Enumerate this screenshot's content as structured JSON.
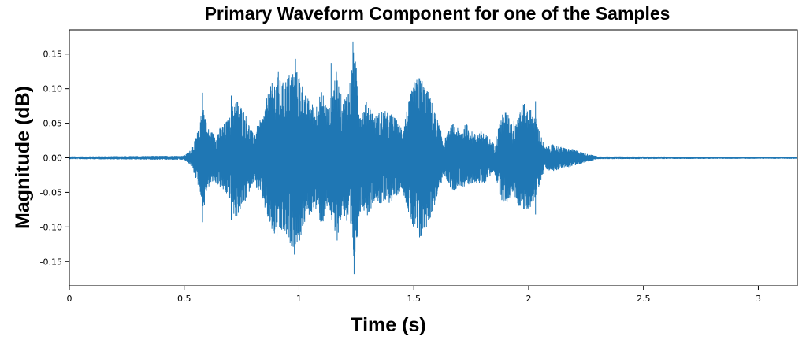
{
  "chart_data": {
    "type": "line",
    "title": "Primary Waveform Component for one of the Samples",
    "xlabel": "Time (s)",
    "ylabel": "Magnitude (dB)",
    "xlim": [
      0,
      3.17
    ],
    "ylim": [
      -0.185,
      0.185
    ],
    "xticks": [
      0,
      0.5,
      1,
      1.5,
      2,
      2.5,
      3
    ],
    "xtick_labels": [
      "0",
      "0.5",
      "1",
      "1.5",
      "2",
      "2.5",
      "3"
    ],
    "yticks": [
      0.15,
      0.1,
      0.05,
      0.0,
      -0.05,
      -0.1,
      -0.15
    ],
    "ytick_labels": [
      "0.15",
      "0.10",
      "0.05",
      "0.00",
      "-0.05",
      "-0.10",
      "-0.15"
    ],
    "grid": false,
    "series": [
      {
        "color": "#1f77b4",
        "envelope": {
          "t": [
            0,
            0.05,
            0.5,
            0.53,
            0.55,
            0.57,
            0.58,
            0.6,
            0.63,
            0.66,
            0.7,
            0.72,
            0.76,
            0.8,
            0.84,
            0.87,
            0.9,
            0.93,
            0.97,
            1.0,
            1.03,
            1.07,
            1.1,
            1.13,
            1.16,
            1.19,
            1.22,
            1.24,
            1.27,
            1.3,
            1.33,
            1.36,
            1.4,
            1.45,
            1.5,
            1.53,
            1.57,
            1.6,
            1.63,
            1.67,
            1.7,
            1.73,
            1.76,
            1.8,
            1.85,
            1.88,
            1.9,
            1.93,
            1.97,
            2.0,
            2.03,
            2.07,
            2.1,
            2.15,
            2.2,
            2.25,
            2.28,
            2.3,
            3.0,
            3.17
          ],
          "amp": [
            0.002,
            0.002,
            0.003,
            0.012,
            0.03,
            0.05,
            0.09,
            0.045,
            0.035,
            0.045,
            0.06,
            0.09,
            0.07,
            0.035,
            0.06,
            0.1,
            0.12,
            0.11,
            0.13,
            0.125,
            0.09,
            0.075,
            0.1,
            0.07,
            0.13,
            0.08,
            0.11,
            0.16,
            0.07,
            0.085,
            0.06,
            0.07,
            0.065,
            0.045,
            0.11,
            0.12,
            0.09,
            0.06,
            0.025,
            0.05,
            0.04,
            0.05,
            0.035,
            0.04,
            0.02,
            0.06,
            0.07,
            0.05,
            0.08,
            0.075,
            0.06,
            0.015,
            0.02,
            0.015,
            0.012,
            0.006,
            0.004,
            0.002,
            0.0015,
            0.0015
          ]
        },
        "peaks": [
          {
            "t": 0.58,
            "y": 0.094
          },
          {
            "t": 0.58,
            "y": -0.093
          },
          {
            "t": 0.705,
            "y": 0.09
          },
          {
            "t": 0.705,
            "y": -0.09
          },
          {
            "t": 0.91,
            "y": 0.125
          },
          {
            "t": 0.98,
            "y": -0.14
          },
          {
            "t": 0.985,
            "y": 0.143
          },
          {
            "t": 1.14,
            "y": 0.137
          },
          {
            "t": 1.235,
            "y": 0.168
          },
          {
            "t": 1.24,
            "y": -0.168
          },
          {
            "t": 1.52,
            "y": 0.115
          },
          {
            "t": 1.525,
            "y": -0.115
          },
          {
            "t": 2.03,
            "y": 0.082
          },
          {
            "t": 2.03,
            "y": -0.082
          }
        ]
      }
    ]
  }
}
